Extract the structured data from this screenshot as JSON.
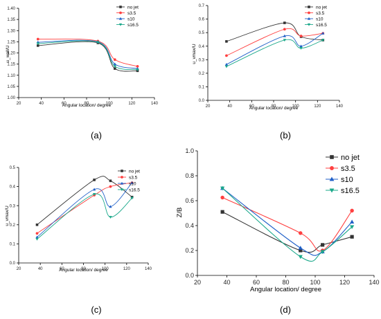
{
  "figure": {
    "captions": [
      "(a)",
      "(b)",
      "(c)",
      "(d)"
    ]
  },
  "chart_data": [
    {
      "type": "line",
      "panel_caption": "(a)",
      "xlabel": "Angular location/ degree",
      "ylabel": "u_wall/U",
      "xlim": [
        20,
        140
      ],
      "ylim": [
        1.0,
        1.4
      ],
      "xticks": [
        20,
        40,
        60,
        80,
        100,
        120,
        140
      ],
      "yticks": [
        1.0,
        1.05,
        1.1,
        1.15,
        1.2,
        1.25,
        1.3,
        1.35,
        1.4
      ],
      "ytick_labels": [
        "1.00",
        "1.05",
        "1.10",
        "1.15",
        "1.20",
        "1.25",
        "1.30",
        "1.35",
        "1.40"
      ],
      "x": [
        37,
        90,
        105,
        125
      ],
      "series": [
        {
          "name": "no jet",
          "values": [
            1.233,
            1.245,
            1.13,
            1.12
          ],
          "color": "#333333",
          "marker": "square"
        },
        {
          "name": "s3.5",
          "values": [
            1.262,
            1.253,
            1.17,
            1.14
          ],
          "color": "#ff4040",
          "marker": "circle"
        },
        {
          "name": "s10",
          "values": [
            1.248,
            1.25,
            1.15,
            1.13
          ],
          "color": "#1f5fc8",
          "marker": "triangle-up"
        },
        {
          "name": "s16.5",
          "values": [
            1.242,
            1.248,
            1.14,
            1.125
          ],
          "color": "#1aa88a",
          "marker": "triangle-down"
        }
      ],
      "legend_position": "top-right",
      "grid": false
    },
    {
      "type": "line",
      "panel_caption": "(b)",
      "xlabel": "Angular location/ degree",
      "ylabel": "u_vmax/U",
      "xlim": [
        20,
        140
      ],
      "ylim": [
        0.0,
        0.7
      ],
      "xticks": [
        20,
        40,
        60,
        80,
        100,
        120,
        140
      ],
      "yticks": [
        0.0,
        0.1,
        0.2,
        0.3,
        0.4,
        0.5,
        0.6,
        0.7
      ],
      "ytick_labels": [
        "0.0",
        "0.1",
        "0.2",
        "0.3",
        "0.4",
        "0.5",
        "0.6",
        "0.7"
      ],
      "x": [
        37,
        90,
        105,
        125
      ],
      "series": [
        {
          "name": "no jet",
          "values": [
            0.435,
            0.572,
            0.47,
            0.445
          ],
          "color": "#333333",
          "marker": "square"
        },
        {
          "name": "s3.5",
          "values": [
            0.33,
            0.525,
            0.475,
            0.495
          ],
          "color": "#ff4040",
          "marker": "circle"
        },
        {
          "name": "s10",
          "values": [
            0.265,
            0.475,
            0.4,
            0.495
          ],
          "color": "#1f5fc8",
          "marker": "triangle-up"
        },
        {
          "name": "s16.5",
          "values": [
            0.25,
            0.445,
            0.385,
            0.445
          ],
          "color": "#1aa88a",
          "marker": "triangle-down"
        }
      ],
      "legend_position": "top-right",
      "grid": false
    },
    {
      "type": "line",
      "panel_caption": "(c)",
      "xlabel": "Angular location/ degree",
      "ylabel": "u_vmax/U",
      "xlim": [
        20,
        140
      ],
      "ylim": [
        0.0,
        0.5
      ],
      "xticks": [
        20,
        40,
        60,
        80,
        100,
        120,
        140
      ],
      "yticks": [
        0.0,
        0.1,
        0.2,
        0.3,
        0.4,
        0.5
      ],
      "ytick_labels": [
        "0.0",
        "0.1",
        "0.2",
        "0.3",
        "0.4",
        "0.5"
      ],
      "x": [
        37,
        90,
        105,
        125
      ],
      "series": [
        {
          "name": "no jet",
          "values": [
            0.2,
            0.435,
            0.43,
            0.345
          ],
          "color": "#333333",
          "marker": "square"
        },
        {
          "name": "s3.5",
          "values": [
            0.155,
            0.355,
            0.4,
            0.42
          ],
          "color": "#ff4040",
          "marker": "circle"
        },
        {
          "name": "s10",
          "values": [
            0.135,
            0.385,
            0.295,
            0.42
          ],
          "color": "#1f5fc8",
          "marker": "triangle-up"
        },
        {
          "name": "s16.5",
          "values": [
            0.125,
            0.36,
            0.24,
            0.34
          ],
          "color": "#1aa88a",
          "marker": "triangle-down"
        }
      ],
      "legend_position": "top-right",
      "grid": false
    },
    {
      "type": "line",
      "panel_caption": "(d)",
      "xlabel": "Angular location/ degree",
      "ylabel": "Z/B",
      "xlim": [
        20,
        140
      ],
      "ylim": [
        0.0,
        1.0
      ],
      "xticks": [
        20,
        40,
        60,
        80,
        100,
        120,
        140
      ],
      "yticks": [
        0.0,
        0.2,
        0.4,
        0.6,
        0.8,
        1.0
      ],
      "ytick_labels": [
        "0.0",
        "0.2",
        "0.4",
        "0.6",
        "0.8",
        "1.0"
      ],
      "x": [
        37,
        90,
        105,
        125
      ],
      "series": [
        {
          "name": "no jet",
          "values": [
            0.51,
            0.2,
            0.245,
            0.31
          ],
          "color": "#333333",
          "marker": "square"
        },
        {
          "name": "s3.5",
          "values": [
            0.625,
            0.34,
            0.2,
            0.52
          ],
          "color": "#ff4040",
          "marker": "circle"
        },
        {
          "name": "s10",
          "values": [
            0.7,
            0.22,
            0.19,
            0.43
          ],
          "color": "#1f5fc8",
          "marker": "triangle-up"
        },
        {
          "name": "s16.5",
          "values": [
            0.7,
            0.15,
            0.19,
            0.39
          ],
          "color": "#1aa88a",
          "marker": "triangle-down"
        }
      ],
      "legend_position": "top-right",
      "grid": false
    }
  ]
}
